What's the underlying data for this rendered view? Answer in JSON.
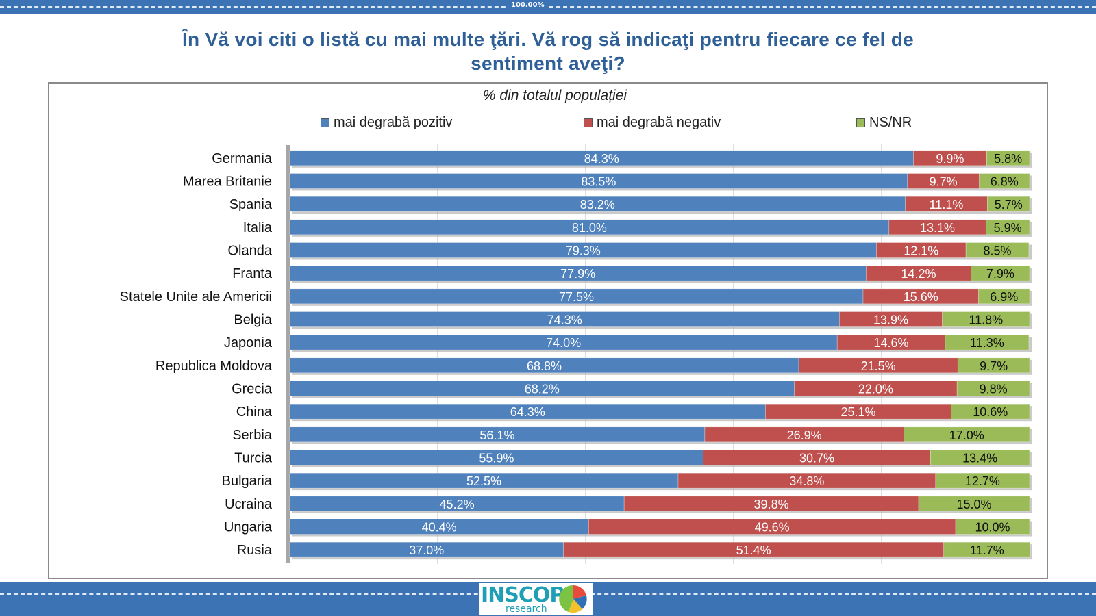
{
  "header": {
    "top_label": "100.00%",
    "title_line1": "În Vă  voi citi o listă cu mai multe ţări. Vă rog să indicaţi pentru fiecare ce fel de",
    "title_line2": "sentiment aveţi?"
  },
  "logo": {
    "brand": "INSCOP",
    "sub": "research"
  },
  "colors": {
    "band": "#3b73b5",
    "title": "#2e5f96",
    "positive": "#4f81bd",
    "negative": "#c0504d",
    "nsnr": "#9bbb59",
    "grid": "#bfbfbf"
  },
  "chart_data": {
    "type": "bar",
    "orientation": "horizontal",
    "stacked": true,
    "percent_stacked": true,
    "title": "% din totalul populației",
    "legend_position": "top",
    "grid": true,
    "xlim": [
      0,
      100
    ],
    "categories": [
      "Germania",
      "Marea Britanie",
      "Spania",
      "Italia",
      "Olanda",
      "Franta",
      "Statele Unite ale Americii",
      "Belgia",
      "Japonia",
      "Republica Moldova",
      "Grecia",
      "China",
      "Serbia",
      "Turcia",
      "Bulgaria",
      "Ucraina",
      "Ungaria",
      "Rusia"
    ],
    "series": [
      {
        "name": "mai degrabă pozitiv",
        "color": "#4f81bd",
        "values": [
          84.3,
          83.5,
          83.2,
          81.0,
          79.3,
          77.9,
          77.5,
          74.3,
          74.0,
          68.8,
          68.2,
          64.3,
          56.1,
          55.9,
          52.5,
          45.2,
          40.4,
          37.0
        ],
        "labels": [
          "84.3%",
          "83.5%",
          "83.2%",
          "81.0%",
          "79.3%",
          "77.9%",
          "77.5%",
          "74.3%",
          "74.0%",
          "68.8%",
          "68.2%",
          "64.3%",
          "56.1%",
          "55.9%",
          "52.5%",
          "45.2%",
          "40.4%",
          "37.0%"
        ]
      },
      {
        "name": "mai degrabă negativ",
        "color": "#c0504d",
        "values": [
          9.9,
          9.7,
          11.1,
          13.1,
          12.1,
          14.2,
          15.6,
          13.9,
          14.6,
          21.5,
          22.0,
          25.1,
          26.9,
          30.7,
          34.8,
          39.8,
          49.6,
          51.4
        ],
        "labels": [
          "9.9%",
          "9.7%",
          "11.1%",
          "13.1%",
          "12.1%",
          "14.2%",
          "15.6%",
          "13.9%",
          "14.6%",
          "21.5%",
          "22.0%",
          "25.1%",
          "26.9%",
          "30.7%",
          "34.8%",
          "39.8%",
          "49.6%",
          "51.4%"
        ]
      },
      {
        "name": "NS/NR",
        "color": "#9bbb59",
        "values": [
          5.8,
          6.8,
          5.7,
          5.9,
          8.5,
          7.9,
          6.9,
          11.8,
          11.3,
          9.7,
          9.8,
          10.6,
          17.0,
          13.4,
          12.7,
          15.0,
          10.0,
          11.7
        ],
        "labels": [
          "5.8%",
          "6.8%",
          "5.7%",
          "5.9%",
          "8.5%",
          "7.9%",
          "6.9%",
          "11.8%",
          "11.3%",
          "9.7%",
          "9.8%",
          "10.6%",
          "17.0%",
          "13.4%",
          "12.7%",
          "15.0%",
          "10.0%",
          "11.7%"
        ]
      }
    ]
  }
}
